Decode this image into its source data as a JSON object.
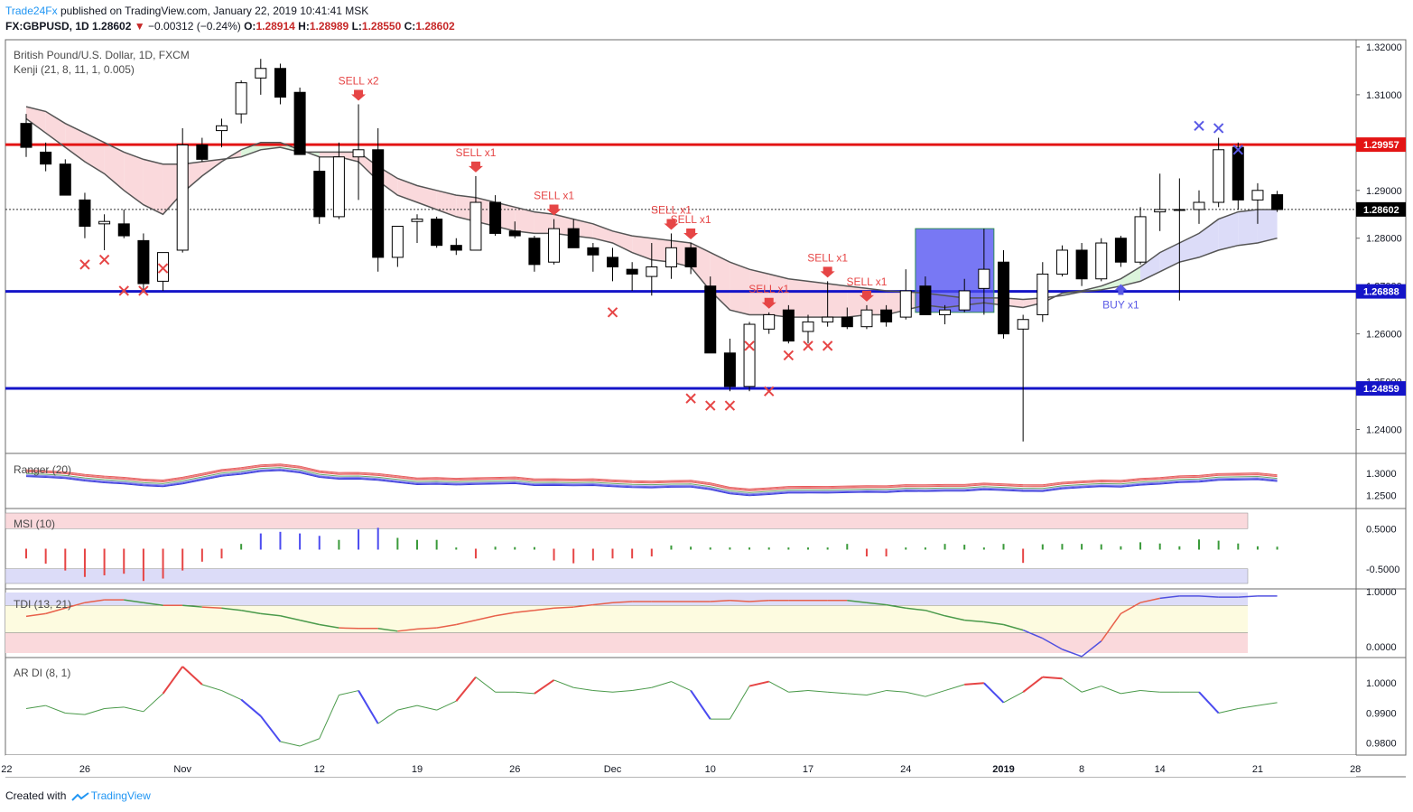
{
  "header": {
    "publisher": "Trade24Fx",
    "published_text": "published on TradingView.com, January 22, 2019 10:41:41 MSK",
    "symbol": "FX:GBPUSD, 1D",
    "last": "1.28602",
    "change": "−0.00312 (−0.24%)",
    "open_label": "O:",
    "open": "1.28914",
    "high_label": "H:",
    "high": "1.28989",
    "low_label": "L:",
    "low": "1.28550",
    "close_label": "C:",
    "close": "1.28602"
  },
  "footer": {
    "created_with": "Created with",
    "brand": "TradingView"
  },
  "colors": {
    "bull_body": "#ffffff",
    "bear_body": "#000000",
    "red_line": "#e31414",
    "blue_line": "#1414c8",
    "sell": "#e64545",
    "buy": "#5a5ae6",
    "cloud_bear": "#fad9dc",
    "cloud_bull": "#dcf5dc",
    "cloud_blue": "#dcdcf8"
  },
  "chart_data": [
    {
      "type": "candlestick",
      "title": "British Pound/U.S. Dollar, 1D, FXCM",
      "indicator": "Kenji (21, 8, 11, 1, 0.005)",
      "ylim": [
        1.235,
        1.3215
      ],
      "yticks": [
        "1.32000",
        "1.31000",
        "1.30000",
        "1.29000",
        "1.28000",
        "1.27000",
        "1.26000",
        "1.25000",
        "1.24000"
      ],
      "price_labels": [
        "1.29957",
        "1.28602",
        "1.26888",
        "1.24859"
      ],
      "horizontal_levels": [
        1.29957,
        1.26888,
        1.24859
      ],
      "last_price": 1.28602,
      "x_ticks": [
        {
          "i": -1,
          "label": "22"
        },
        {
          "i": 3,
          "label": "26"
        },
        {
          "i": 8,
          "label": "Nov"
        },
        {
          "i": 15,
          "label": "12"
        },
        {
          "i": 20,
          "label": "19"
        },
        {
          "i": 25,
          "label": "26"
        },
        {
          "i": 30,
          "label": "Dec"
        },
        {
          "i": 35,
          "label": "10"
        },
        {
          "i": 40,
          "label": "17"
        },
        {
          "i": 45,
          "label": "24"
        },
        {
          "i": 50,
          "label": "2019"
        },
        {
          "i": 54,
          "label": "8"
        },
        {
          "i": 58,
          "label": "14"
        },
        {
          "i": 63,
          "label": "21"
        },
        {
          "i": 68,
          "label": "28"
        }
      ],
      "candles": [
        [
          1.304,
          1.306,
          1.297,
          1.299
        ],
        [
          1.298,
          1.3,
          1.294,
          1.2955
        ],
        [
          1.2955,
          1.2965,
          1.289,
          1.289
        ],
        [
          1.288,
          1.2895,
          1.28,
          1.2825
        ],
        [
          1.283,
          1.285,
          1.2775,
          1.2835
        ],
        [
          1.283,
          1.286,
          1.28,
          1.2805
        ],
        [
          1.2795,
          1.281,
          1.269,
          1.2705
        ],
        [
          1.271,
          1.2765,
          1.269,
          1.277
        ],
        [
          1.2775,
          1.303,
          1.277,
          1.2995
        ],
        [
          1.2995,
          1.301,
          1.296,
          1.2965
        ],
        [
          1.3025,
          1.305,
          1.299,
          1.3035
        ],
        [
          1.306,
          1.313,
          1.304,
          1.3125
        ],
        [
          1.3135,
          1.3175,
          1.31,
          1.3155
        ],
        [
          1.3155,
          1.3165,
          1.308,
          1.3095
        ],
        [
          1.3105,
          1.3115,
          1.298,
          1.2975
        ],
        [
          1.294,
          1.297,
          1.283,
          1.2845
        ],
        [
          1.2845,
          1.3,
          1.284,
          1.297
        ],
        [
          1.297,
          1.308,
          1.288,
          1.2985
        ],
        [
          1.2985,
          1.303,
          1.273,
          1.276
        ],
        [
          1.276,
          1.2825,
          1.274,
          1.2825
        ],
        [
          1.2835,
          1.285,
          1.279,
          1.284
        ],
        [
          1.284,
          1.2845,
          1.278,
          1.2785
        ],
        [
          1.2785,
          1.28,
          1.2765,
          1.2775
        ],
        [
          1.2775,
          1.293,
          1.2775,
          1.2875
        ],
        [
          1.2875,
          1.289,
          1.2805,
          1.281
        ],
        [
          1.2815,
          1.2835,
          1.28,
          1.2805
        ],
        [
          1.28,
          1.2805,
          1.273,
          1.2745
        ],
        [
          1.275,
          1.284,
          1.2745,
          1.282
        ],
        [
          1.282,
          1.284,
          1.278,
          1.278
        ],
        [
          1.278,
          1.279,
          1.273,
          1.2765
        ],
        [
          1.276,
          1.278,
          1.271,
          1.274
        ],
        [
          1.2735,
          1.275,
          1.269,
          1.2725
        ],
        [
          1.272,
          1.279,
          1.268,
          1.274
        ],
        [
          1.274,
          1.281,
          1.2715,
          1.278
        ],
        [
          1.278,
          1.279,
          1.2725,
          1.274
        ],
        [
          1.27,
          1.272,
          1.256,
          1.256
        ],
        [
          1.256,
          1.259,
          1.248,
          1.249
        ],
        [
          1.249,
          1.2625,
          1.248,
          1.262
        ],
        [
          1.261,
          1.2645,
          1.26,
          1.264
        ],
        [
          1.265,
          1.266,
          1.258,
          1.2585
        ],
        [
          1.2605,
          1.264,
          1.258,
          1.2625
        ],
        [
          1.2625,
          1.271,
          1.2615,
          1.2635
        ],
        [
          1.2635,
          1.2655,
          1.261,
          1.2615
        ],
        [
          1.2615,
          1.266,
          1.261,
          1.265
        ],
        [
          1.265,
          1.266,
          1.2615,
          1.2625
        ],
        [
          1.2635,
          1.2735,
          1.263,
          1.269
        ],
        [
          1.27,
          1.272,
          1.264,
          1.264
        ],
        [
          1.264,
          1.266,
          1.262,
          1.265
        ],
        [
          1.265,
          1.2715,
          1.2645,
          1.269
        ],
        [
          1.2695,
          1.282,
          1.264,
          1.2735
        ],
        [
          1.275,
          1.2775,
          1.259,
          1.26
        ],
        [
          1.261,
          1.264,
          1.2375,
          1.263
        ],
        [
          1.264,
          1.275,
          1.2625,
          1.2725
        ],
        [
          1.2725,
          1.2785,
          1.272,
          1.2775
        ],
        [
          1.2775,
          1.279,
          1.27,
          1.2715
        ],
        [
          1.2715,
          1.28,
          1.271,
          1.279
        ],
        [
          1.28,
          1.2805,
          1.274,
          1.275
        ],
        [
          1.275,
          1.2865,
          1.2745,
          1.2845
        ],
        [
          1.2855,
          1.2935,
          1.2815,
          1.286
        ],
        [
          1.286,
          1.2925,
          1.267,
          1.286
        ],
        [
          1.286,
          1.29,
          1.283,
          1.2875
        ],
        [
          1.2875,
          1.301,
          1.2865,
          1.2985
        ],
        [
          1.299,
          1.3,
          1.286,
          1.288
        ],
        [
          1.288,
          1.2915,
          1.283,
          1.29
        ],
        [
          1.2891,
          1.2899,
          1.2855,
          1.286
        ]
      ],
      "kenji_fast": [
        1.305,
        1.302,
        1.299,
        1.296,
        1.2935,
        1.29,
        1.287,
        1.285,
        1.2895,
        1.293,
        1.296,
        1.2985,
        1.3,
        1.3,
        1.2985,
        1.297,
        1.297,
        1.296,
        1.292,
        1.289,
        1.2875,
        1.286,
        1.2845,
        1.2835,
        1.2825,
        1.2815,
        1.281,
        1.281,
        1.2805,
        1.28,
        1.279,
        1.277,
        1.2755,
        1.275,
        1.274,
        1.269,
        1.265,
        1.264,
        1.264,
        1.2635,
        1.2635,
        1.2635,
        1.2635,
        1.264,
        1.264,
        1.265,
        1.266,
        1.2655,
        1.266,
        1.2665,
        1.266,
        1.2655,
        1.2665,
        1.2685,
        1.269,
        1.27,
        1.2715,
        1.274,
        1.277,
        1.279,
        1.281,
        1.284,
        1.2855,
        1.286,
        1.286
      ],
      "kenji_slow": [
        1.3075,
        1.3065,
        1.304,
        1.302,
        1.3,
        1.298,
        1.2965,
        1.2955,
        1.2955,
        1.296,
        1.2965,
        1.297,
        1.2985,
        1.299,
        1.298,
        1.298,
        1.298,
        1.298,
        1.295,
        1.2925,
        1.291,
        1.29,
        1.289,
        1.2885,
        1.2875,
        1.2865,
        1.2855,
        1.285,
        1.284,
        1.283,
        1.2815,
        1.2805,
        1.28,
        1.2795,
        1.279,
        1.277,
        1.275,
        1.2735,
        1.2725,
        1.2715,
        1.271,
        1.2705,
        1.27,
        1.2695,
        1.269,
        1.2688,
        1.2685,
        1.268,
        1.2675,
        1.2675,
        1.2675,
        1.2672,
        1.2675,
        1.268,
        1.2688,
        1.2692,
        1.27,
        1.271,
        1.273,
        1.275,
        1.276,
        1.2775,
        1.2785,
        1.279,
        1.28
      ],
      "signals": [
        {
          "i": 17,
          "label": "SELL x2",
          "kind": "sell"
        },
        {
          "i": 23,
          "label": "SELL x1",
          "kind": "sell"
        },
        {
          "i": 27,
          "label": "SELL x1",
          "kind": "sell"
        },
        {
          "i": 33,
          "label": "SELL x1",
          "kind": "sell"
        },
        {
          "i": 34,
          "label": "SELL x1",
          "kind": "sell"
        },
        {
          "i": 38,
          "label": "SELL x1",
          "kind": "sell"
        },
        {
          "i": 41,
          "label": "SELL x1",
          "kind": "sell"
        },
        {
          "i": 43,
          "label": "SELL x1",
          "kind": "sell"
        },
        {
          "i": 56,
          "label": "BUY x1",
          "kind": "buy"
        }
      ],
      "x_marks": [
        {
          "i": 3,
          "p": 1.2745,
          "kind": "sell"
        },
        {
          "i": 4,
          "p": 1.2755,
          "kind": "sell"
        },
        {
          "i": 5,
          "p": 1.269,
          "kind": "sell"
        },
        {
          "i": 6,
          "p": 1.269,
          "kind": "sell"
        },
        {
          "i": 7,
          "p": 1.2737,
          "kind": "sell"
        },
        {
          "i": 30,
          "p": 1.2645,
          "kind": "sell"
        },
        {
          "i": 34,
          "p": 1.2465,
          "kind": "sell"
        },
        {
          "i": 35,
          "p": 1.245,
          "kind": "sell"
        },
        {
          "i": 36,
          "p": 1.245,
          "kind": "sell"
        },
        {
          "i": 37,
          "p": 1.2575,
          "kind": "sell"
        },
        {
          "i": 38,
          "p": 1.248,
          "kind": "sell"
        },
        {
          "i": 39,
          "p": 1.2555,
          "kind": "sell"
        },
        {
          "i": 40,
          "p": 1.2575,
          "kind": "sell"
        },
        {
          "i": 41,
          "p": 1.2575,
          "kind": "sell"
        },
        {
          "i": 60,
          "p": 1.3035,
          "kind": "buy"
        },
        {
          "i": 61,
          "p": 1.303,
          "kind": "buy"
        },
        {
          "i": 62,
          "p": 1.2985,
          "kind": "buy"
        }
      ],
      "box": {
        "i_from": 46,
        "i_to": 49,
        "p_top": 1.282,
        "p_bottom": 1.2645
      }
    },
    {
      "type": "line",
      "title": "Ranger (20)",
      "yticks": [
        "1.3000",
        "1.2500"
      ],
      "ylim": [
        1.22,
        1.345
      ]
    },
    {
      "type": "bar",
      "title": "MSI (10)",
      "yticks": [
        "0.5000",
        "-0.5000"
      ],
      "ylim": [
        -1.0,
        1.0
      ],
      "values": [
        -0.22,
        -0.35,
        -0.52,
        -0.68,
        -0.64,
        -0.6,
        -0.78,
        -0.72,
        -0.52,
        -0.3,
        -0.22,
        0.12,
        0.38,
        0.42,
        0.38,
        0.32,
        0.22,
        0.48,
        0.52,
        0.27,
        0.22,
        0.22,
        0.03,
        -0.22,
        0.05,
        0.04,
        0.04,
        -0.27,
        -0.34,
        -0.27,
        -0.22,
        -0.22,
        -0.17,
        0.08,
        0.05,
        0.03,
        0.03,
        0.03,
        0.03,
        0.03,
        0.03,
        0.03,
        0.12,
        -0.17,
        -0.17,
        0.03,
        0.03,
        0.12,
        0.1,
        0.03,
        0.12,
        -0.33,
        0.11,
        0.12,
        0.12,
        0.11,
        0.06,
        0.16,
        0.13,
        0.06,
        0.23,
        0.2,
        0.13,
        0.06,
        0.05
      ]
    },
    {
      "type": "line",
      "title": "TDI (13, 21)",
      "yticks": [
        "1.0000",
        "0.0000"
      ],
      "ylim": [
        -0.2,
        1.05
      ],
      "values": [
        0.55,
        0.6,
        0.7,
        0.8,
        0.85,
        0.85,
        0.8,
        0.75,
        0.75,
        0.72,
        0.7,
        0.66,
        0.6,
        0.56,
        0.48,
        0.4,
        0.34,
        0.33,
        0.33,
        0.28,
        0.32,
        0.34,
        0.4,
        0.48,
        0.56,
        0.62,
        0.66,
        0.7,
        0.72,
        0.76,
        0.8,
        0.82,
        0.82,
        0.82,
        0.82,
        0.82,
        0.84,
        0.82,
        0.84,
        0.84,
        0.84,
        0.84,
        0.84,
        0.8,
        0.76,
        0.7,
        0.66,
        0.56,
        0.48,
        0.45,
        0.4,
        0.3,
        0.15,
        -0.05,
        -0.18,
        0.1,
        0.6,
        0.8,
        0.88,
        0.92,
        0.92,
        0.9,
        0.9,
        0.92,
        0.92
      ]
    },
    {
      "type": "line",
      "title": "AR DI (8, 1)",
      "yticks": [
        "1.0000",
        "0.9900",
        "0.9800"
      ],
      "ylim": [
        0.976,
        1.0085
      ],
      "values": [
        0.9915,
        0.9925,
        0.99,
        0.9895,
        0.9915,
        0.992,
        0.9905,
        0.9965,
        1.0055,
        0.9995,
        0.9975,
        0.9945,
        0.989,
        0.9805,
        0.979,
        0.9815,
        0.996,
        0.9975,
        0.9865,
        0.991,
        0.9925,
        0.991,
        0.994,
        1.002,
        0.997,
        0.997,
        0.9965,
        1.001,
        0.9985,
        0.9975,
        0.997,
        0.9975,
        0.9985,
        1.0005,
        0.9975,
        0.988,
        0.988,
        0.999,
        1.0005,
        0.997,
        0.9975,
        0.997,
        0.9965,
        0.996,
        0.9975,
        0.997,
        0.9955,
        0.9975,
        0.9995,
        1.0,
        0.9935,
        0.997,
        1.002,
        1.0015,
        0.997,
        0.999,
        0.9965,
        0.9975,
        0.997,
        0.997,
        0.997,
        0.99,
        0.9915,
        0.9925,
        0.9935
      ]
    }
  ]
}
